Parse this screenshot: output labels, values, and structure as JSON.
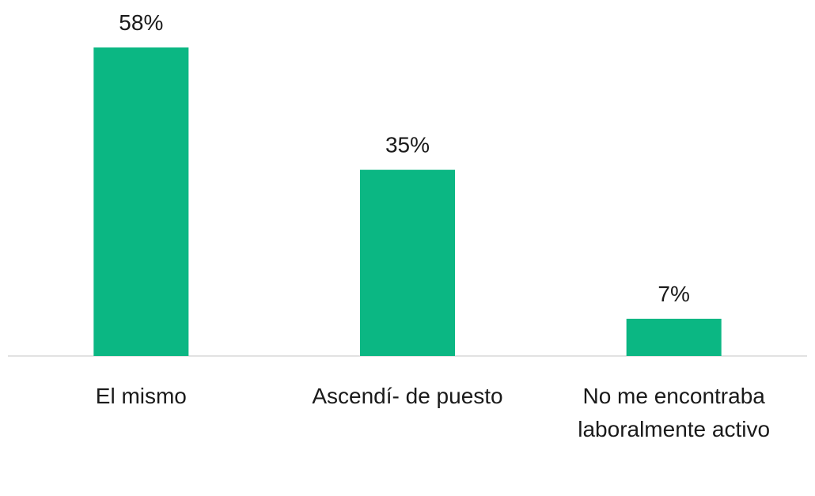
{
  "chart_data": {
    "type": "bar",
    "categories": [
      "El mismo",
      "Ascendí- de puesto",
      "No me encontraba laboralmente activo"
    ],
    "values": [
      58,
      35,
      7
    ],
    "value_labels": [
      "58%",
      "35%",
      "7%"
    ],
    "color": "#0bb783"
  }
}
